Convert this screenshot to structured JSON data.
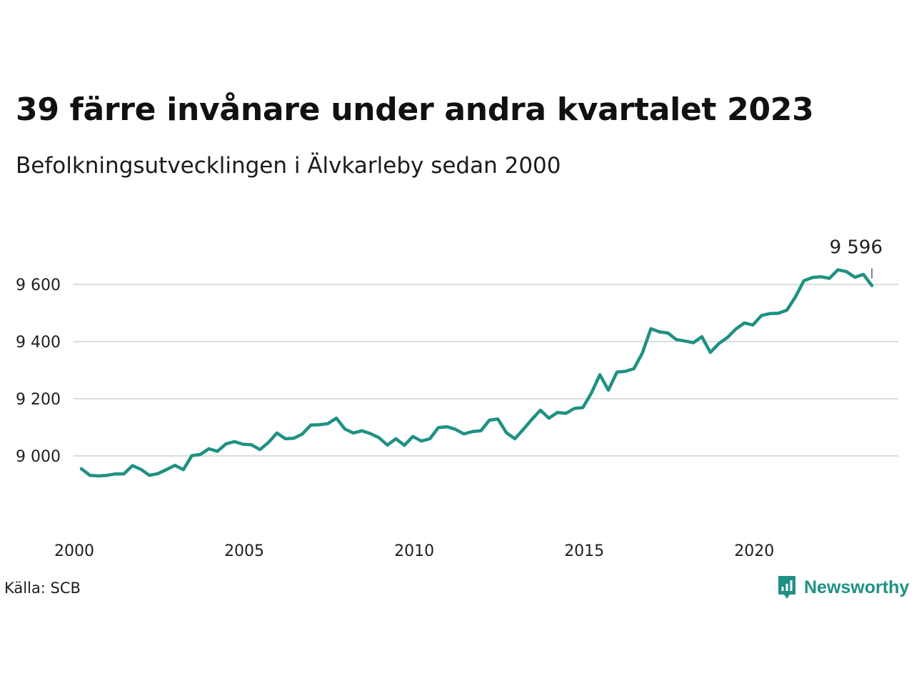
{
  "title": "39 färre invånare under andra kvartalet 2023",
  "subtitle": "Befolkningsutvecklingen i Älvkarleby sedan 2000",
  "source": "Källa: SCB",
  "brand": {
    "name": "Newsworthy",
    "icon": "newsworthy-logo-icon",
    "color": "#1f9183"
  },
  "chart_data": {
    "type": "line",
    "title": "39 färre invånare under andra kvartalet 2023",
    "subtitle": "Befolkningsutvecklingen i Älvkarleby sedan 2000",
    "xlabel": "",
    "ylabel": "",
    "grid": true,
    "line_color": "#1f9183",
    "grid_color": "#dcdcdc",
    "x_ticks": [
      2000,
      2005,
      2010,
      2015,
      2020
    ],
    "y_ticks": [
      9000,
      9200,
      9400,
      9600
    ],
    "y_tick_labels": [
      "9 000",
      "9 200",
      "9 400",
      "9 600"
    ],
    "xlim": [
      2000,
      2024
    ],
    "ylim": [
      8880,
      9720
    ],
    "last_value_label": "9 596",
    "series": [
      {
        "x": [
          2000.0,
          2000.25,
          2000.5,
          2000.75,
          2001.0,
          2001.25,
          2001.5,
          2001.75,
          2002.0,
          2002.25,
          2002.5,
          2002.75,
          2003.0,
          2003.25,
          2003.5,
          2003.75,
          2004.0,
          2004.25,
          2004.5,
          2004.75,
          2005.0,
          2005.25,
          2005.5,
          2005.75,
          2006.0,
          2006.25,
          2006.5,
          2006.75,
          2007.0,
          2007.25,
          2007.5,
          2007.75,
          2008.0,
          2008.25,
          2008.5,
          2008.75,
          2009.0,
          2009.25,
          2009.5,
          2009.75,
          2010.0,
          2010.25,
          2010.5,
          2010.75,
          2011.0,
          2011.25,
          2011.5,
          2011.75,
          2012.0,
          2012.25,
          2012.5,
          2012.75,
          2013.0,
          2013.25,
          2013.5,
          2013.75,
          2014.0,
          2014.25,
          2014.5,
          2014.75,
          2015.0,
          2015.25,
          2015.5,
          2015.75,
          2016.0,
          2016.25,
          2016.5,
          2016.75,
          2017.0,
          2017.25,
          2017.5,
          2017.75,
          2018.0,
          2018.25,
          2018.5,
          2018.75,
          2019.0,
          2019.25,
          2019.5,
          2019.75,
          2020.0,
          2020.25,
          2020.5,
          2020.75,
          2021.0,
          2021.25,
          2021.5,
          2021.75,
          2022.0,
          2022.25,
          2022.5,
          2022.75,
          2023.0,
          2023.25
        ],
        "values": [
          8955,
          8932,
          8930,
          8932,
          8937,
          8937,
          8966,
          8953,
          8932,
          8938,
          8952,
          8967,
          8952,
          9001,
          9005,
          9025,
          9016,
          9042,
          9050,
          9041,
          9039,
          9022,
          9047,
          9080,
          9060,
          9062,
          9077,
          9108,
          9109,
          9113,
          9132,
          9094,
          9080,
          9088,
          9078,
          9064,
          9038,
          9060,
          9037,
          9068,
          9052,
          9060,
          9099,
          9102,
          9093,
          9077,
          9085,
          9088,
          9125,
          9129,
          9081,
          9060,
          9093,
          9128,
          9160,
          9132,
          9152,
          9149,
          9166,
          9169,
          9220,
          9284,
          9230,
          9293,
          9296,
          9305,
          9360,
          9445,
          9434,
          9430,
          9407,
          9402,
          9396,
          9417,
          9362,
          9393,
          9414,
          9444,
          9465,
          9458,
          9491,
          9498,
          9499,
          9510,
          9556,
          9613,
          9624,
          9627,
          9621,
          9651,
          9645,
          9625,
          9635,
          9596
        ]
      }
    ]
  }
}
